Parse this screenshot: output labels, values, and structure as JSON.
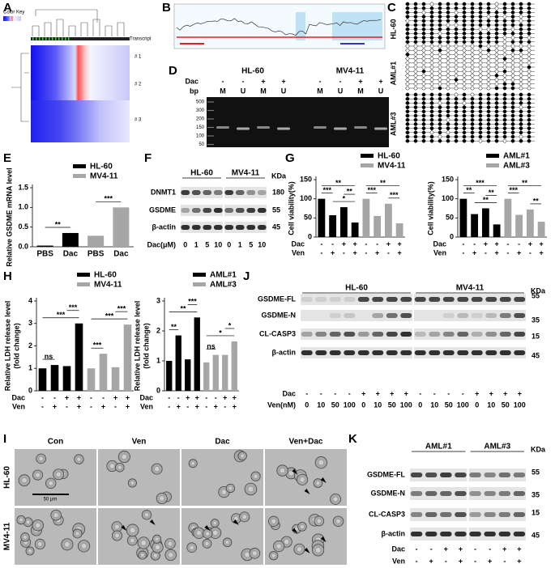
{
  "panel_letters": [
    "A",
    "B",
    "C",
    "D",
    "E",
    "F",
    "G",
    "H",
    "I",
    "J",
    "K"
  ],
  "heatmap": {
    "color_key": "Color Key",
    "column_label": "Transcript",
    "row_labels": [
      "# 1",
      "# 2",
      "# 3"
    ]
  },
  "bisulfite_clones": {
    "groups": [
      "HL-60",
      "AML#1",
      "AML#3"
    ]
  },
  "gel": {
    "cell_lines": [
      "HL-60",
      "MV4-11"
    ],
    "treatment_label": "Dac",
    "signs": [
      "-",
      "-",
      "+",
      "+",
      "-",
      "-",
      "+",
      "+"
    ],
    "unit_label": "bp",
    "lanes": [
      "M",
      "U",
      "M",
      "U",
      "M",
      "U",
      "M",
      "U"
    ],
    "ladder": [
      "500",
      "300",
      "200",
      "150",
      "100",
      "50"
    ]
  },
  "chart_data": [
    {
      "type": "bar",
      "y_label": [
        "Relative GSDME mRNA level"
      ],
      "categories": [
        "PBS",
        "Dac",
        "PBS",
        "Dac"
      ],
      "series": [
        {
          "name": "HL-60",
          "color": "#000000",
          "values": [
            0.03,
            0.35,
            null,
            null
          ]
        },
        {
          "name": "MV4-11",
          "color": "#a6a6a6",
          "values": [
            null,
            null,
            0.28,
            1.0
          ]
        }
      ],
      "ylim": [
        0,
        1.5
      ],
      "yticks": [
        {
          "value": 0,
          "label": "0.0"
        },
        {
          "value": 0.5,
          "label": "0.5"
        },
        {
          "value": 1,
          "label": "1.0"
        },
        {
          "value": 1.5,
          "label": "1.5"
        }
      ],
      "annotations": [
        "**",
        "***"
      ]
    },
    {
      "type": "bar",
      "y_label": [
        "Cell viability(%)"
      ],
      "series": [
        {
          "name": "HL-60",
          "color": "#000000",
          "values": [
            100,
            57,
            78,
            38,
            null,
            null,
            null,
            null
          ]
        },
        {
          "name": "MV4-11",
          "color": "#a6a6a6",
          "values": [
            null,
            null,
            null,
            null,
            100,
            55,
            87,
            36
          ]
        }
      ],
      "ylim": [
        0,
        150
      ],
      "yticks": [
        0,
        50,
        100,
        150
      ],
      "treatments": [
        {
          "label": "Dac",
          "signs": [
            "-",
            "-",
            "+",
            "+",
            "-",
            "-",
            "+",
            "+"
          ]
        },
        {
          "label": "Ven",
          "signs": [
            "-",
            "+",
            "-",
            "+",
            "-",
            "+",
            "-",
            "+"
          ]
        }
      ],
      "annotations": [
        "***",
        "*",
        "**",
        "**",
        "***",
        "**",
        "***"
      ]
    },
    {
      "type": "bar",
      "y_label": [
        "Cell viability(%)"
      ],
      "series": [
        {
          "name": "AML#1",
          "color": "#000000",
          "values": [
            100,
            60,
            75,
            33,
            null,
            null,
            null,
            null
          ]
        },
        {
          "name": "AML#3",
          "color": "#a6a6a6",
          "values": [
            null,
            null,
            null,
            null,
            100,
            58,
            72,
            40
          ]
        }
      ],
      "ylim": [
        0,
        150
      ],
      "yticks": [
        0,
        50,
        100,
        150
      ],
      "treatments": [
        {
          "label": "Dac",
          "signs": [
            "-",
            "-",
            "+",
            "+",
            "-",
            "-",
            "+",
            "+"
          ]
        },
        {
          "label": "Ven",
          "signs": [
            "-",
            "+",
            "-",
            "+",
            "-",
            "+",
            "-",
            "+"
          ]
        }
      ],
      "annotations": [
        "**",
        "**",
        "***",
        "**",
        "***",
        "**",
        "**"
      ]
    },
    {
      "type": "bar",
      "y_label": [
        "Relative LDH release level",
        "(fold change)"
      ],
      "series": [
        {
          "name": "HL-60",
          "color": "#000000",
          "values": [
            1.0,
            1.15,
            1.1,
            3.0,
            null,
            null,
            null,
            null
          ]
        },
        {
          "name": "MV4-11",
          "color": "#a6a6a6",
          "values": [
            null,
            null,
            null,
            null,
            1.0,
            1.65,
            1.05,
            2.95
          ]
        }
      ],
      "ylim": [
        0,
        4
      ],
      "yticks": [
        0,
        1,
        2,
        3,
        4
      ],
      "treatments": [
        {
          "label": "Dac",
          "signs": [
            "-",
            "-",
            "+",
            "+",
            "-",
            "-",
            "+",
            "+"
          ]
        },
        {
          "label": "Ven",
          "signs": [
            "-",
            "+",
            "-",
            "+",
            "-",
            "+",
            "-",
            "+"
          ]
        }
      ],
      "annotations": [
        "ns",
        "***",
        "***",
        "***",
        "***",
        "***"
      ]
    },
    {
      "type": "bar",
      "y_label": [
        "Relative LDH release level",
        "(fold change)"
      ],
      "series": [
        {
          "name": "AML#1",
          "color": "#000000",
          "values": [
            1.0,
            1.85,
            1.05,
            2.45,
            null,
            null,
            null,
            null
          ]
        },
        {
          "name": "AML#3",
          "color": "#a6a6a6",
          "values": [
            null,
            null,
            null,
            null,
            0.95,
            1.2,
            1.2,
            1.65
          ]
        }
      ],
      "ylim": [
        0,
        3
      ],
      "yticks": [
        0,
        1,
        2,
        3
      ],
      "treatments": [
        {
          "label": "Dac",
          "signs": [
            "-",
            "-",
            "+",
            "+",
            "-",
            "-",
            "+",
            "+"
          ]
        },
        {
          "label": "Ven",
          "signs": [
            "-",
            "+",
            "-",
            "+",
            "-",
            "+",
            "-",
            "+"
          ]
        }
      ],
      "annotations": [
        "**",
        "**",
        "***",
        "ns",
        "*",
        "*"
      ]
    }
  ],
  "western_F": {
    "cell_lines": [
      "HL-60",
      "MV4-11"
    ],
    "proteins": [
      "DNMT1",
      "GSDME",
      "β-actin"
    ],
    "kda_label": "KDa",
    "kda": [
      "180",
      "55",
      "45"
    ],
    "dose_label": "Dac(μM)",
    "doses": [
      "0",
      "1",
      "5",
      "10",
      "0",
      "1",
      "5",
      "10"
    ]
  },
  "micrographs": {
    "columns": [
      "Con",
      "Ven",
      "Dac",
      "Ven+Dac"
    ],
    "rows": [
      "HL-60",
      "MV4-11"
    ],
    "scale_bar": "50 μm"
  },
  "western_J": {
    "cell_lines": [
      "HL-60",
      "MV4-11"
    ],
    "proteins": [
      "GSDME-FL",
      "GSDME-N",
      "CL-CASP3",
      "β-actin"
    ],
    "kda_label": "KDa",
    "kda": [
      "55",
      "35",
      "15",
      "45"
    ],
    "treatments": [
      {
        "label": "Dac",
        "signs": [
          "-",
          "-",
          "-",
          "-",
          "+",
          "+",
          "+",
          "+",
          "-",
          "-",
          "-",
          "-",
          "+",
          "+",
          "+",
          "+"
        ]
      },
      {
        "label": "Ven(nM)",
        "signs": [
          "0",
          "10",
          "50",
          "100",
          "0",
          "10",
          "50",
          "100",
          "0",
          "10",
          "50",
          "100",
          "0",
          "10",
          "50",
          "100"
        ]
      }
    ]
  },
  "western_K": {
    "cell_lines": [
      "AML#1",
      "AML#3"
    ],
    "proteins": [
      "GSDME-FL",
      "GSDME-N",
      "CL-CASP3",
      "β-actin"
    ],
    "kda_label": "KDa",
    "kda": [
      "55",
      "35",
      "15",
      "45"
    ],
    "treatments": [
      {
        "label": "Dac",
        "signs": [
          "-",
          "-",
          "+",
          "+",
          "-",
          "-",
          "+",
          "+"
        ]
      },
      {
        "label": "Ven",
        "signs": [
          "-",
          "+",
          "-",
          "+",
          "-",
          "+",
          "-",
          "+"
        ]
      }
    ]
  }
}
